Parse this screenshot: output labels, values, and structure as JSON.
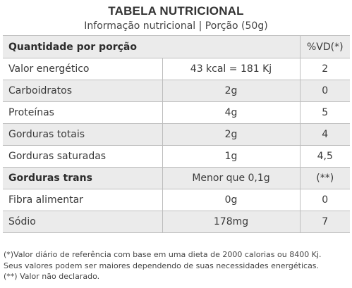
{
  "header": {
    "title": "TABELA NUTRICIONAL",
    "subtitle": "Informação nutricional | Porção (50g)"
  },
  "table": {
    "head": {
      "label": "Quantidade por porção",
      "vd": "%VD(*)"
    },
    "rows": [
      {
        "name": "Valor energético",
        "value": "43 kcal = 181 Kj",
        "vd": "2",
        "bold": false
      },
      {
        "name": "Carboidratos",
        "value": "2g",
        "vd": "0",
        "bold": false
      },
      {
        "name": "Proteínas",
        "value": "4g",
        "vd": "5",
        "bold": false
      },
      {
        "name": "Gorduras totais",
        "value": "2g",
        "vd": "4",
        "bold": false
      },
      {
        "name": "Gorduras saturadas",
        "value": "1g",
        "vd": "4,5",
        "bold": false
      },
      {
        "name": "Gorduras trans",
        "value": "Menor que 0,1g",
        "vd": "(**)",
        "bold": true
      },
      {
        "name": "Fibra alimentar",
        "value": "0g",
        "vd": "0",
        "bold": false
      },
      {
        "name": "Sódio",
        "value": "178mg",
        "vd": "7",
        "bold": false
      }
    ]
  },
  "footnotes": [
    "(*)Valor diário de referência com base em uma dieta de 2000 calorias ou 8400 Kj.",
    "Seus valores podem ser maiores dependendo de suas necessidades energéticas.",
    "(**) Valor não declarado."
  ]
}
